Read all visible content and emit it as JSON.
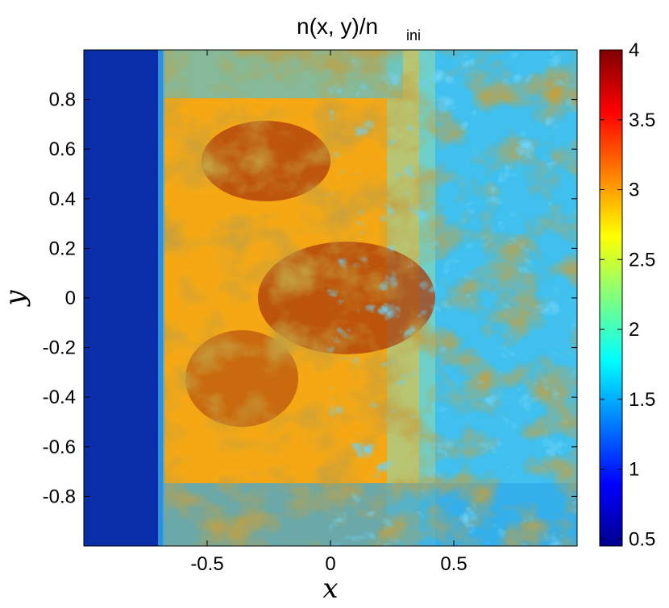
{
  "chart_data": {
    "type": "heatmap",
    "title_main": "n(x, y)/n",
    "title_subscript": "ini",
    "xlabel": "x",
    "ylabel": "y",
    "xlim": [
      -1,
      1
    ],
    "ylim": [
      -1,
      1
    ],
    "x_ticks": [
      -0.5,
      0,
      0.5
    ],
    "x_tick_labels": [
      "-0.5",
      "0",
      "0.5"
    ],
    "y_ticks": [
      0.8,
      0.6,
      0.4,
      0.2,
      0,
      -0.2,
      -0.4,
      -0.6,
      -0.8
    ],
    "y_tick_labels": [
      "0.8",
      "0.6",
      "0.4",
      "0.2",
      "0",
      "-0.2",
      "-0.4",
      "-0.6",
      "-0.8"
    ],
    "colorbar": {
      "range": [
        0.45,
        4
      ],
      "ticks": [
        4,
        3.5,
        3,
        2.5,
        2,
        1.5,
        1,
        0.5
      ],
      "tick_labels": [
        "4",
        "3.5",
        "3",
        "2.5",
        "2",
        "1.5",
        "1",
        "0.5"
      ],
      "colormap": "jet"
    },
    "field_regions": [
      {
        "region": "x < -0.67",
        "approx_value": 0.8
      },
      {
        "region": "-0.67 < x < -0.2",
        "approx_value": 2.6
      },
      {
        "region": "-0.2 < x < 0.5",
        "approx_value": 3.0
      },
      {
        "region": "x > 0.5",
        "approx_value": 2.0
      }
    ]
  }
}
